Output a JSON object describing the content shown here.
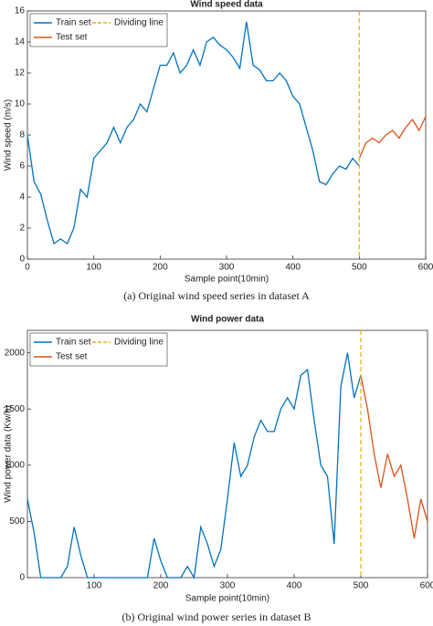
{
  "chart_data": [
    {
      "type": "line",
      "title": "Wind speed data",
      "x_label": "Sample point(10min)",
      "y_label": "Wind speed (m/s)",
      "caption": "(a) Original wind speed series in dataset A",
      "xlim": [
        0,
        600
      ],
      "ylim": [
        0,
        16
      ],
      "xticks": [
        0,
        100,
        200,
        300,
        400,
        500,
        600
      ],
      "yticks": [
        0,
        2,
        4,
        6,
        8,
        10,
        12,
        14,
        16
      ],
      "legend": "upper left",
      "series": [
        {
          "name": "Train set",
          "color": "#0072bd",
          "x": [
            0,
            10,
            20,
            30,
            40,
            50,
            60,
            70,
            80,
            90,
            100,
            110,
            120,
            130,
            140,
            150,
            160,
            170,
            180,
            190,
            200,
            210,
            220,
            230,
            240,
            250,
            260,
            270,
            280,
            290,
            300,
            310,
            320,
            330,
            340,
            350,
            360,
            370,
            380,
            390,
            400,
            410,
            420,
            430,
            440,
            450,
            460,
            470,
            480,
            490,
            500
          ],
          "values": [
            8,
            5,
            4.2,
            2.5,
            1,
            1.3,
            1,
            2,
            4.5,
            4,
            6.5,
            7,
            7.5,
            8.5,
            7.5,
            8.5,
            9,
            10,
            9.5,
            11,
            12.5,
            12.5,
            13.3,
            12,
            12.5,
            13.5,
            12.5,
            14,
            14.3,
            13.8,
            13.5,
            13,
            12.3,
            15.3,
            12.5,
            12.2,
            11.5,
            11.5,
            12,
            11.5,
            10.5,
            10,
            8.5,
            7,
            5,
            4.8,
            5.5,
            6,
            5.8,
            6.5,
            6
          ]
        },
        {
          "name": "Test set",
          "color": "#d95319",
          "x": [
            500,
            510,
            520,
            530,
            540,
            550,
            560,
            570,
            580,
            590,
            600
          ],
          "values": [
            6.5,
            7.5,
            7.8,
            7.5,
            8,
            8.3,
            7.8,
            8.5,
            9,
            8.3,
            9.2
          ]
        }
      ],
      "dividing_line": {
        "name": "Dividing line",
        "color": "#edb120",
        "x": 500
      }
    },
    {
      "type": "line",
      "title": "Wind power data",
      "x_label": "Sample point(10min)",
      "y_label": "Wind power data (Kw/h)",
      "caption": "(b) Original wind power series in dataset B",
      "xlim": [
        0,
        600
      ],
      "ylim": [
        0,
        2200
      ],
      "xticks": [
        100,
        200,
        300,
        400,
        500,
        600
      ],
      "yticks": [
        0,
        500,
        1000,
        1500,
        2000
      ],
      "legend": "upper left",
      "series": [
        {
          "name": "Train set",
          "color": "#0072bd",
          "x": [
            0,
            10,
            20,
            30,
            40,
            50,
            60,
            70,
            80,
            90,
            100,
            110,
            120,
            130,
            140,
            150,
            160,
            170,
            180,
            190,
            200,
            210,
            220,
            230,
            240,
            250,
            260,
            270,
            280,
            290,
            300,
            310,
            320,
            330,
            340,
            350,
            360,
            370,
            380,
            390,
            400,
            410,
            420,
            430,
            440,
            450,
            460,
            470,
            480,
            490,
            500
          ],
          "values": [
            700,
            400,
            0,
            0,
            0,
            0,
            100,
            450,
            200,
            0,
            0,
            0,
            0,
            0,
            0,
            0,
            0,
            0,
            0,
            350,
            150,
            0,
            0,
            0,
            100,
            0,
            450,
            300,
            100,
            250,
            700,
            1200,
            900,
            1000,
            1250,
            1400,
            1300,
            1300,
            1500,
            1600,
            1500,
            1800,
            1850,
            1400,
            1000,
            900,
            300,
            1700,
            2000,
            1600,
            1800
          ]
        },
        {
          "name": "Test set",
          "color": "#d95319",
          "x": [
            500,
            510,
            520,
            530,
            540,
            550,
            560,
            570,
            580,
            590,
            600
          ],
          "values": [
            1800,
            1500,
            1100,
            800,
            1100,
            900,
            1000,
            700,
            350,
            700,
            500
          ]
        }
      ],
      "dividing_line": {
        "name": "Dividing line",
        "color": "#edb120",
        "x": 500
      }
    }
  ]
}
